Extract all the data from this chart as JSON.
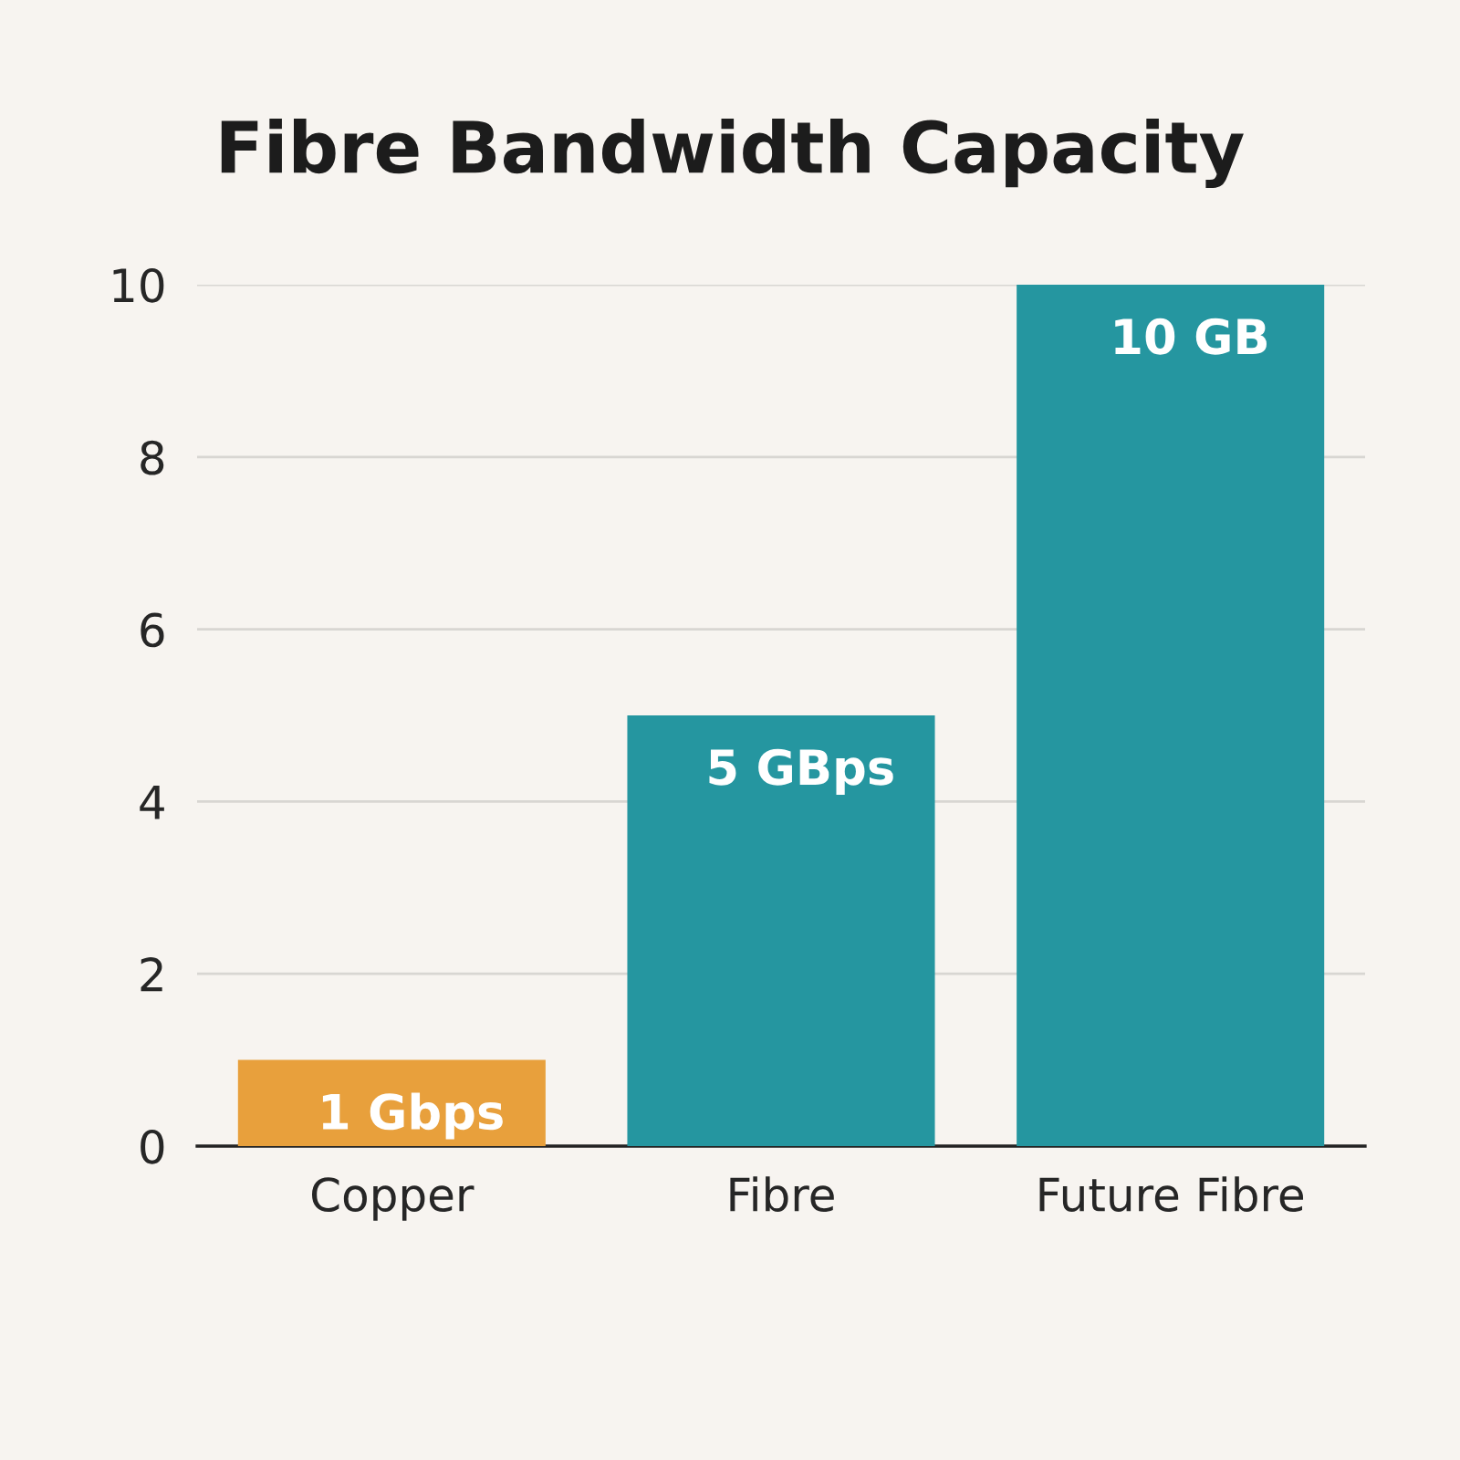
{
  "chart_data": {
    "type": "bar",
    "title": "Fibre Bandwidth Capacity",
    "categories": [
      "Copper",
      "Fibre",
      "Future Fibre"
    ],
    "values": [
      1,
      5,
      10
    ],
    "colors": [
      "#e8a03c",
      "#2596a0",
      "#2596a0"
    ],
    "value_labels": [
      "1 Gbps",
      "5 GBps",
      "10 GB"
    ],
    "ylim": [
      0,
      10
    ],
    "yticks": [
      0,
      2,
      4,
      6,
      8,
      10
    ],
    "grid": "y"
  }
}
